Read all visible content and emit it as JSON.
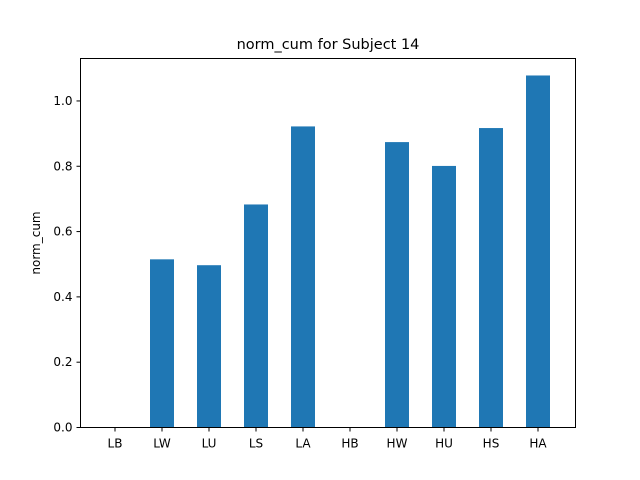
{
  "chart_data": {
    "type": "bar",
    "title": "norm_cum for Subject 14",
    "xlabel": "",
    "ylabel": "norm_cum",
    "categories": [
      "LB",
      "LW",
      "LU",
      "LS",
      "LA",
      "HB",
      "HW",
      "HU",
      "HS",
      "HA"
    ],
    "values": [
      0.0,
      0.515,
      0.497,
      0.683,
      0.922,
      0.0,
      0.874,
      0.801,
      0.917,
      1.078
    ],
    "ylim": [
      0,
      1.13
    ],
    "yticks": [
      0.0,
      0.2,
      0.4,
      0.6,
      0.8,
      1.0
    ],
    "ytick_labels": [
      "0.0",
      "0.2",
      "0.4",
      "0.6",
      "0.8",
      "1.0"
    ],
    "bar_color": "#1f77b4",
    "grid": false,
    "legend": "none"
  }
}
